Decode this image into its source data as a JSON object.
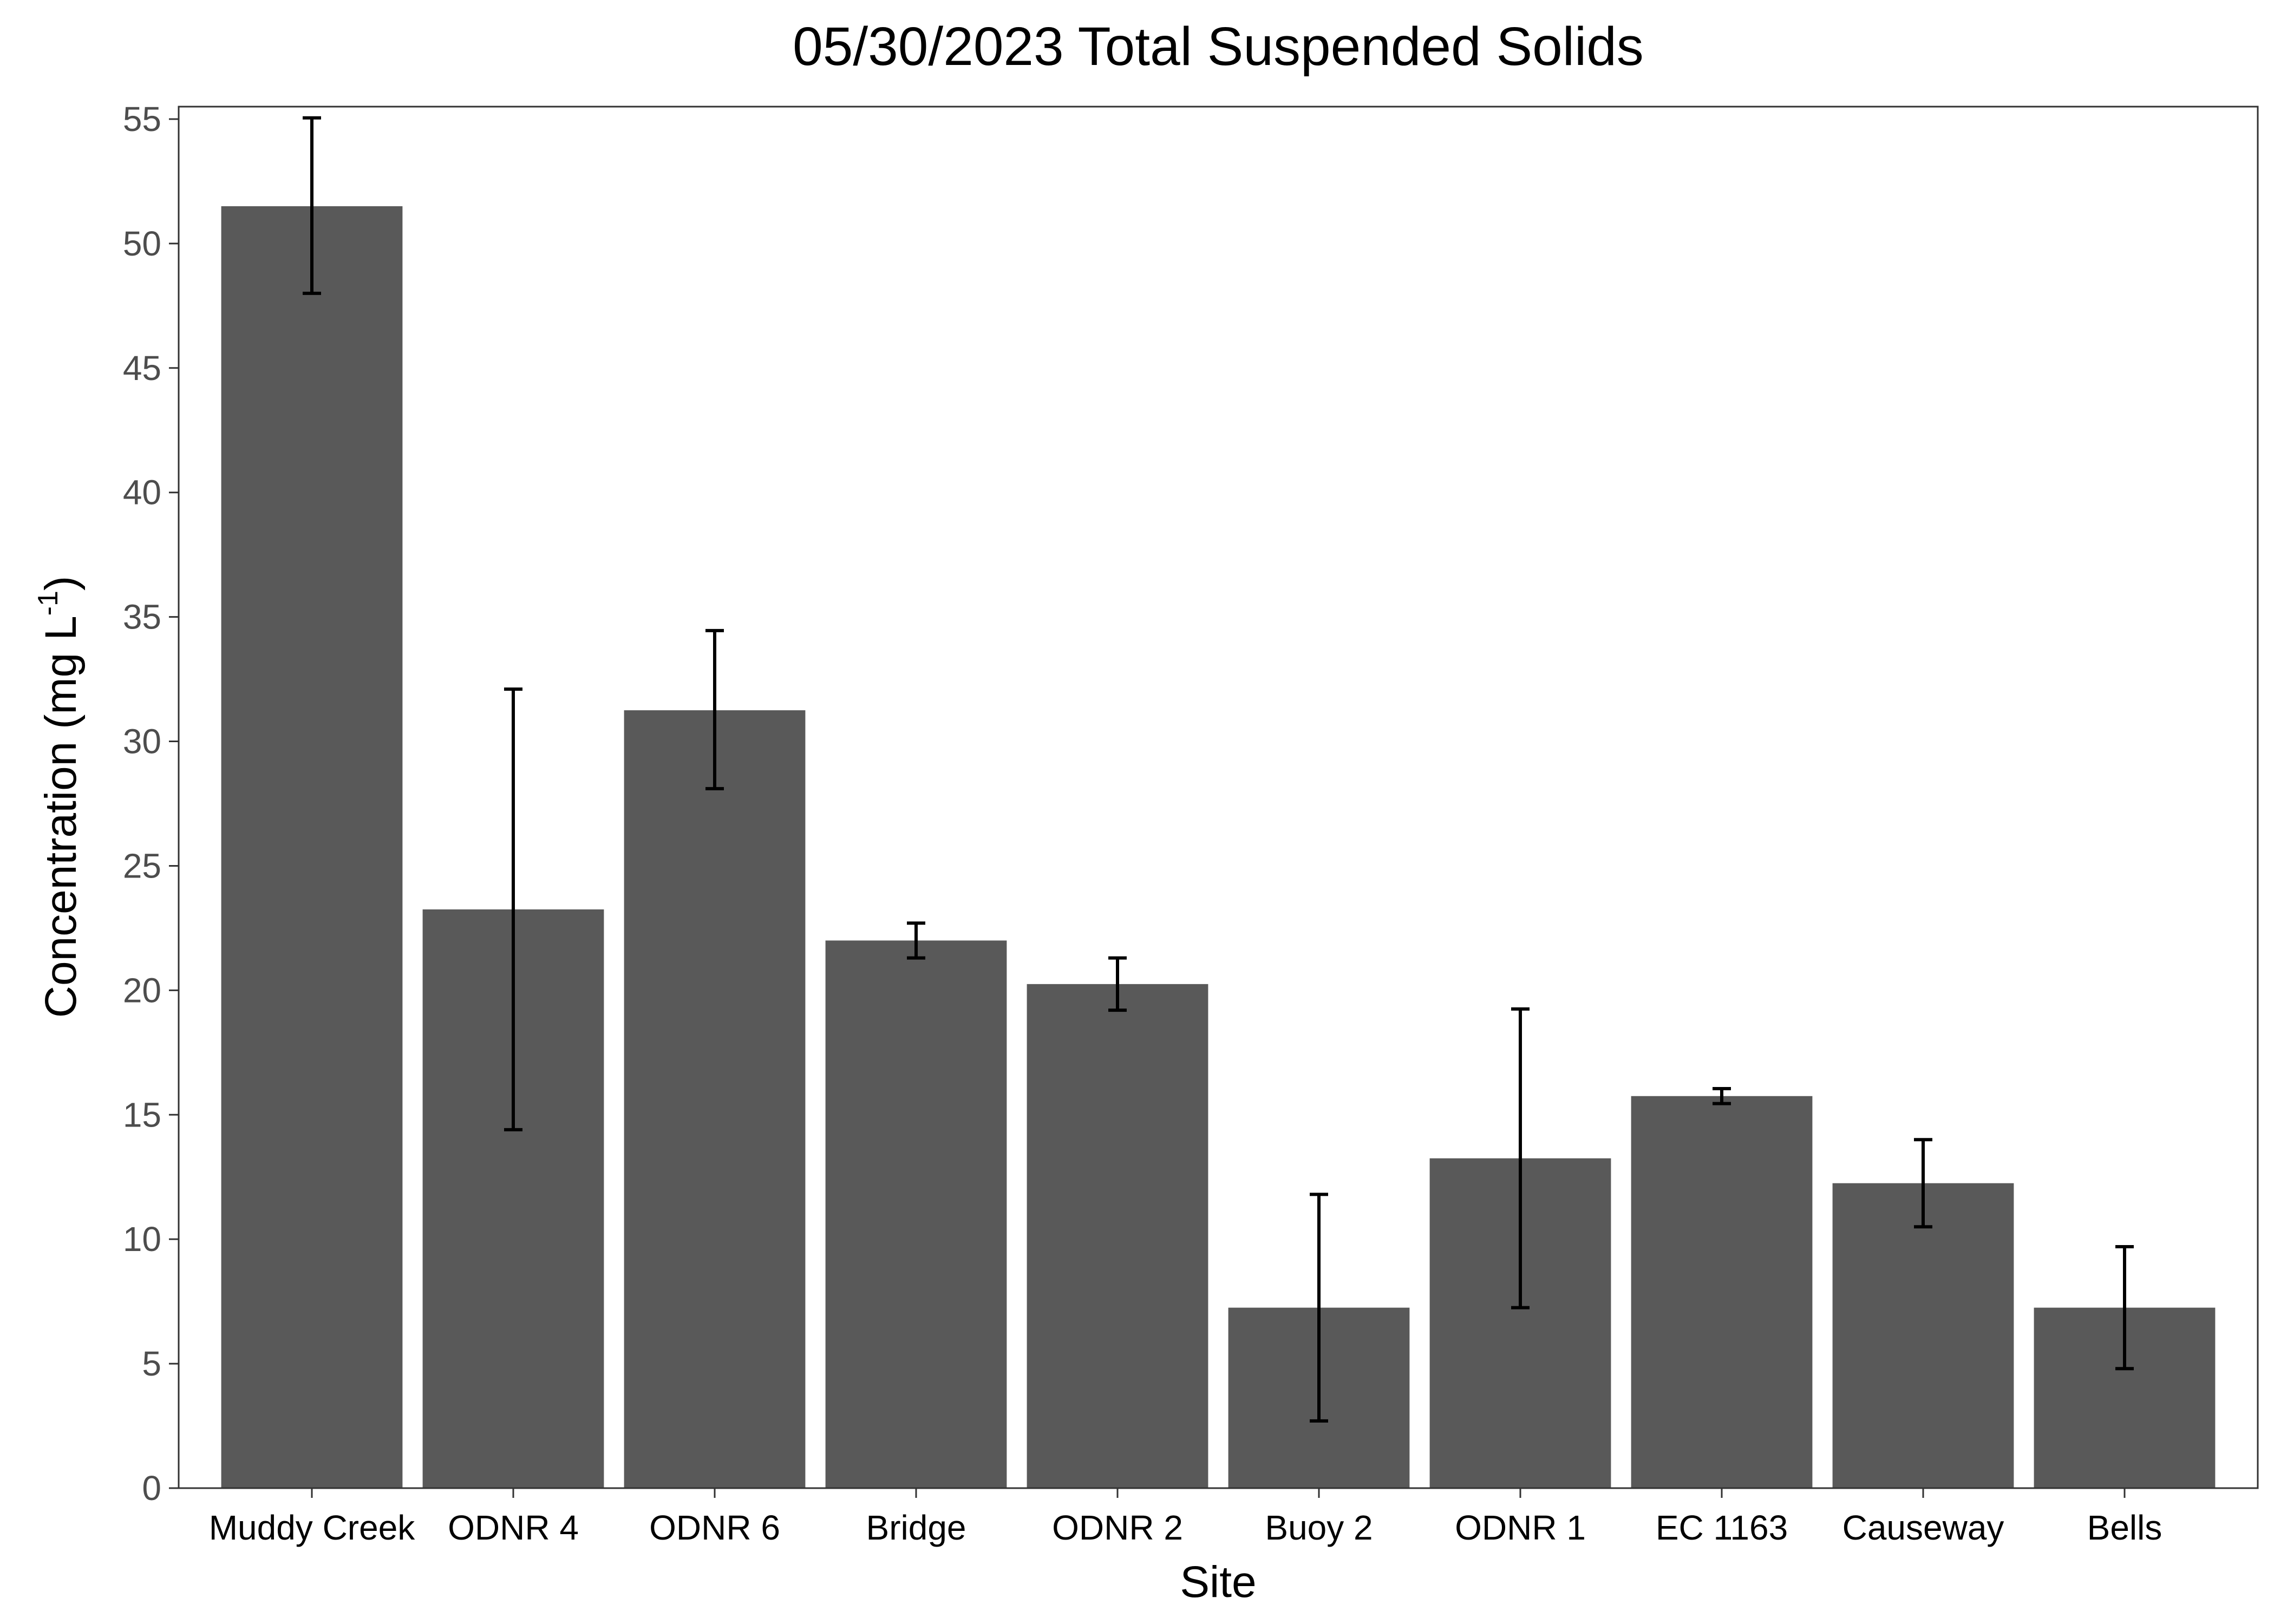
{
  "chart_data": {
    "type": "bar",
    "title": "05/30/2023 Total Suspended Solids",
    "xlabel": "Site",
    "ylabel": {
      "main": "Concentration (mg L",
      "superscript": "-1",
      "close": ")"
    },
    "categories": [
      "Muddy Creek",
      "ODNR 4",
      "ODNR 6",
      "Bridge",
      "ODNR 2",
      "Buoy 2",
      "ODNR 1",
      "EC 1163",
      "Causeway",
      "Bells"
    ],
    "values": [
      51.5,
      23.25,
      31.25,
      22.0,
      20.25,
      7.25,
      13.25,
      15.75,
      12.25,
      7.25
    ],
    "error_low": [
      48.0,
      14.4,
      28.1,
      21.3,
      19.2,
      2.7,
      7.25,
      15.45,
      10.5,
      4.8
    ],
    "error_high": [
      55.05,
      32.1,
      34.45,
      22.7,
      21.3,
      11.8,
      19.25,
      16.05,
      14.0,
      9.7
    ],
    "ylim": [
      0,
      55.5
    ],
    "yticks": [
      0,
      5,
      10,
      15,
      20,
      25,
      30,
      35,
      40,
      45,
      50,
      55
    ],
    "grid": false,
    "legend": "none",
    "colors": {
      "bar": "#595959",
      "error_bar": "#000000",
      "panel_border": "#333333",
      "tick_label": "#4d4d4d"
    }
  }
}
